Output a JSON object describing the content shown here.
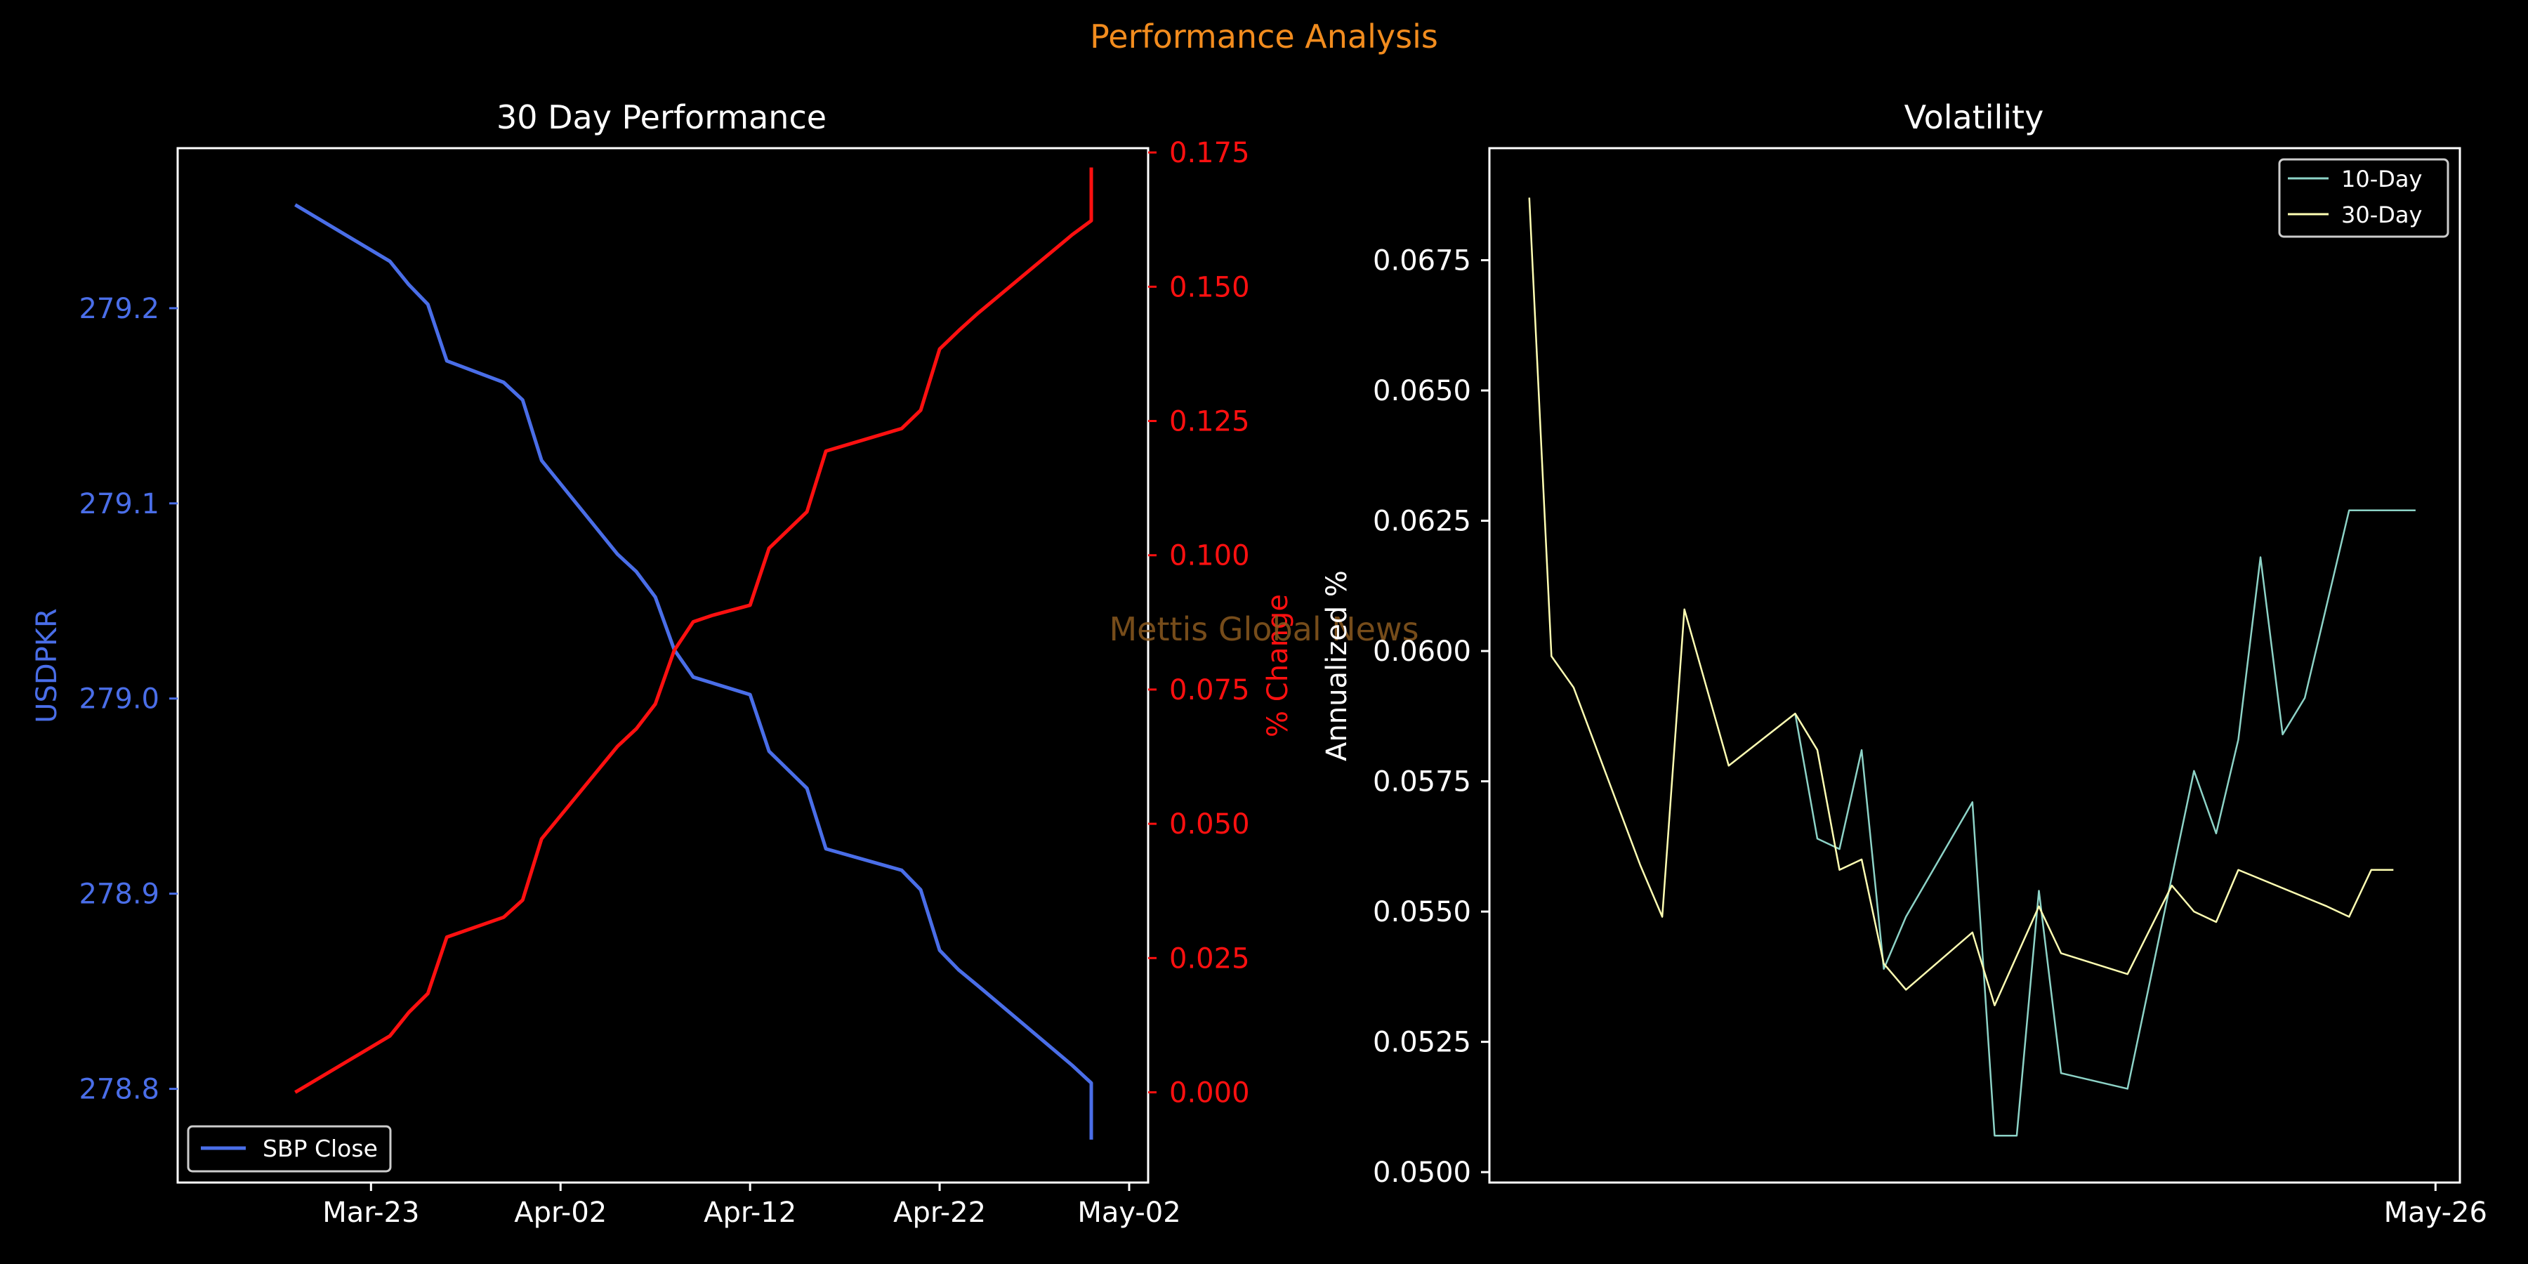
{
  "suptitle": "Performance Analysis",
  "watermark": "Mettis Global News",
  "colors": {
    "background": "#000000",
    "suptitle": "#f28c1e",
    "watermark": "#8b5a1f",
    "axes": "#ffffff",
    "price": "#4a6ee8",
    "change": "#ff1010",
    "ten_day": "#8dd3c7",
    "thirty_day": "#ffffb3"
  },
  "chart_data": [
    {
      "type": "line",
      "title": "30 Day Performance",
      "xlabel": "",
      "ylabel": "USDPKR",
      "ylabel_right": "% Change",
      "x_ticks": [
        "Mar-23",
        "Apr-02",
        "Apr-12",
        "Apr-22",
        "May-02"
      ],
      "x_tick_days": [
        4,
        14,
        24,
        34,
        44
      ],
      "xlim_days": [
        -6.2,
        45
      ],
      "ylim": [
        278.752,
        279.282
      ],
      "y_ticks": [
        "278.8",
        "278.9",
        "279.0",
        "279.1",
        "279.2"
      ],
      "y2lim": [
        -0.0168,
        0.1758
      ],
      "y2_ticks": [
        "0.000",
        "0.025",
        "0.050",
        "0.075",
        "0.100",
        "0.125",
        "0.150",
        "0.175"
      ],
      "legend": {
        "position": "lower-left",
        "entries": [
          "SBP Close"
        ]
      },
      "series": [
        {
          "name": "SBP Close",
          "axis": "left",
          "x_days": [
            0,
            5,
            6,
            7,
            8,
            11,
            12,
            13,
            17,
            18,
            19,
            20,
            21,
            22,
            24,
            25,
            27,
            28,
            32,
            33,
            34,
            35,
            36,
            41,
            42
          ],
          "values": [
            279.253,
            279.224,
            279.212,
            279.202,
            279.173,
            279.162,
            279.153,
            279.122,
            279.074,
            279.065,
            279.052,
            279.025,
            279.011,
            279.008,
            279.002,
            278.973,
            278.954,
            278.923,
            278.912,
            278.902,
            278.871,
            278.861,
            278.853,
            278.812,
            278.803
          ]
        },
        {
          "name": "",
          "axis": "right",
          "x_days": [
            0,
            5,
            6,
            7,
            8,
            11,
            12,
            13,
            17,
            18,
            19,
            20,
            21,
            22,
            24,
            25,
            27,
            28,
            32,
            33,
            34,
            35,
            36,
            41,
            42
          ],
          "values": [
            0.0,
            0.0105,
            0.0149,
            0.0184,
            0.0289,
            0.0326,
            0.0358,
            0.0472,
            0.0644,
            0.0677,
            0.0723,
            0.0823,
            0.0876,
            0.0888,
            0.0907,
            0.1013,
            0.1081,
            0.1194,
            0.1236,
            0.127,
            0.1384,
            0.1418,
            0.145,
            0.1597,
            0.1623
          ]
        }
      ],
      "series_tail": {
        "x_day": 42,
        "left_value": 278.774,
        "right_value": 0.1722
      }
    },
    {
      "type": "line",
      "title": "Volatility",
      "xlabel": "",
      "ylabel": "Annualized %",
      "x_ticks": [
        "May-26"
      ],
      "x_tick_positions": [
        40.9
      ],
      "xlim": [
        -1.8,
        42
      ],
      "ylim": [
        0.0498,
        0.06965
      ],
      "y_ticks": [
        "0.0500",
        "0.0525",
        "0.0550",
        "0.0575",
        "0.0600",
        "0.0625",
        "0.0650",
        "0.0675"
      ],
      "legend": {
        "position": "top-right",
        "entries": [
          "10-Day",
          "30-Day"
        ]
      },
      "series": [
        {
          "name": "10-Day",
          "x": [
            12,
            13,
            14,
            15,
            16,
            17,
            20,
            21,
            22,
            23,
            24,
            27,
            30,
            31,
            32,
            33,
            34,
            35,
            37,
            39,
            40
          ],
          "values": [
            0.0588,
            0.0564,
            0.0562,
            0.0581,
            0.0539,
            0.0549,
            0.0571,
            0.0507,
            0.0507,
            0.0554,
            0.0519,
            0.0516,
            0.0577,
            0.0565,
            0.0583,
            0.0618,
            0.0584,
            0.0591,
            0.0627,
            0.0627,
            0.0627
          ]
        },
        {
          "name": "30-Day",
          "x": [
            0,
            1,
            2,
            5,
            6,
            7,
            9,
            12,
            13,
            14,
            15,
            16,
            17,
            20,
            21,
            23,
            24,
            27,
            29,
            30,
            31,
            32,
            36,
            37,
            38,
            39
          ],
          "values": [
            0.0687,
            0.0599,
            0.0593,
            0.0559,
            0.0549,
            0.0608,
            0.0578,
            0.0588,
            0.0581,
            0.0558,
            0.056,
            0.054,
            0.0535,
            0.0546,
            0.0532,
            0.0551,
            0.0542,
            0.0538,
            0.0555,
            0.055,
            0.0548,
            0.0558,
            0.0551,
            0.0549,
            0.0558,
            0.0558
          ]
        }
      ]
    }
  ]
}
